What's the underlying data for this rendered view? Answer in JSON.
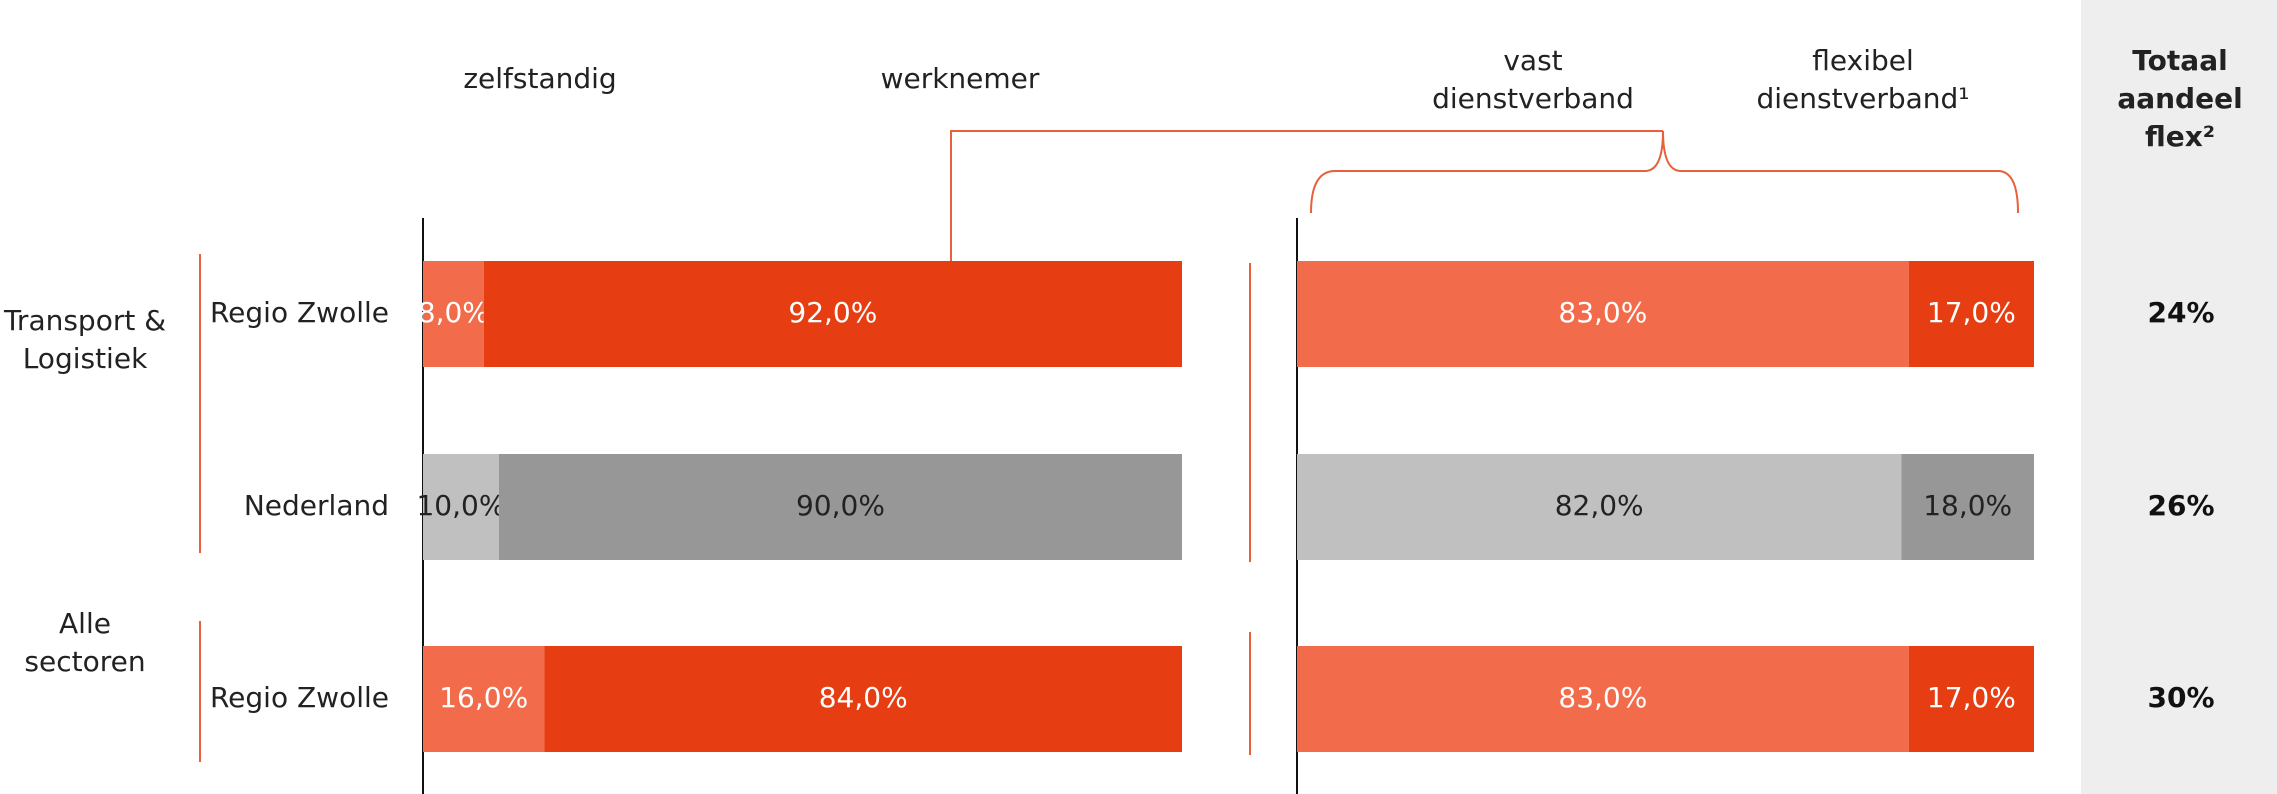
{
  "chart_data": [
    {
      "type": "bar",
      "orientation": "horizontal",
      "stacked": true,
      "categories": [
        "Regio Zwolle",
        "Nederland",
        "Regio Zwolle"
      ],
      "xlim": [
        0,
        100
      ],
      "series": [
        {
          "name": "zelfstandig",
          "colors": [
            "#f26b4a",
            "#c0c0c0",
            "#f26b4a"
          ],
          "values": [
            8,
            10,
            16
          ],
          "value_labels": [
            "8,0%",
            "10,0%",
            "16,0%"
          ]
        },
        {
          "name": "werknemer",
          "colors": [
            "#e63e12",
            "#979797",
            "#e63e12"
          ],
          "values": [
            92,
            90,
            84
          ],
          "value_labels": [
            "92,0%",
            "90,0%",
            "84,0%"
          ]
        }
      ]
    },
    {
      "type": "bar",
      "orientation": "horizontal",
      "stacked": true,
      "categories": [
        "Regio Zwolle",
        "Nederland",
        "Regio Zwolle"
      ],
      "xlim": [
        0,
        100
      ],
      "series": [
        {
          "name": "vast dienstverband",
          "colors": [
            "#f26b4a",
            "#c0c0c0",
            "#f26b4a"
          ],
          "values": [
            83,
            82,
            83
          ],
          "value_labels": [
            "83,0%",
            "82,0%",
            "83,0%"
          ]
        },
        {
          "name": "flexibel dienstverband¹",
          "colors": [
            "#e63e12",
            "#979797",
            "#e63e12"
          ],
          "values": [
            17,
            18,
            17
          ],
          "value_labels": [
            "17,0%",
            "18,0%",
            "17,0%"
          ]
        }
      ]
    }
  ],
  "groups": [
    "Transport & Logistiek",
    "Alle sectoren"
  ],
  "total": {
    "title": "Totaal aandeel flex²",
    "values": [
      24,
      26,
      30
    ],
    "value_labels": [
      "24%",
      "26%",
      "30%"
    ]
  }
}
